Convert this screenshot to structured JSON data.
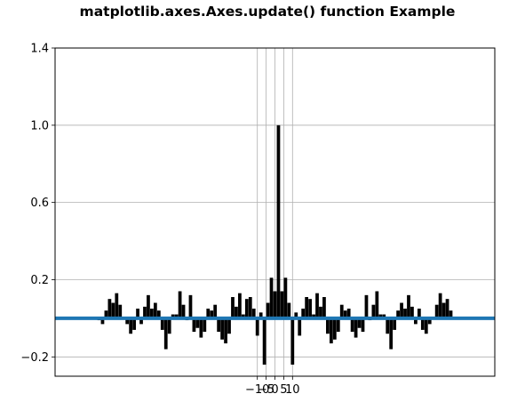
{
  "chart_data": {
    "type": "bar",
    "title": "matplotlib.axes.Axes.update() function Example",
    "xlabel": "",
    "ylabel": "",
    "xlim": [
      -125,
      125
    ],
    "ylim": [
      -0.3,
      1.4
    ],
    "yticks": [
      -0.2,
      0.2,
      0.6,
      1.0,
      1.4
    ],
    "ytick_labels": [
      "−0.2",
      "0.2",
      "0.6",
      "1.0",
      "1.4"
    ],
    "xticks": [
      -10,
      -5,
      0,
      5,
      10
    ],
    "xtick_labels": [
      "−10",
      "−5",
      "0",
      "5",
      "10"
    ],
    "grid": true,
    "bar_color": "#000000",
    "baseline": {
      "y": 0,
      "color": "#1f77b4"
    },
    "series": [
      {
        "x": [
          -100,
          -98,
          -96,
          -94,
          -92,
          -90,
          -88,
          -86,
          -84,
          -82,
          -80,
          -78,
          -76,
          -74,
          -72,
          -70,
          -68,
          -66,
          -64,
          -62,
          -60,
          -58,
          -56,
          -54,
          -52,
          -50,
          -48,
          -46,
          -44,
          -42,
          -40,
          -38,
          -36,
          -34,
          -32,
          -30,
          -28,
          -26,
          -24,
          -22,
          -20,
          -18,
          -16,
          -14,
          -12,
          -10,
          -8,
          -6,
          -4,
          -2,
          0,
          2,
          4,
          6,
          8,
          10,
          12,
          14,
          16,
          18,
          20,
          22,
          24,
          26,
          28,
          30,
          32,
          34,
          36,
          38,
          40,
          42,
          44,
          46,
          48,
          50,
          52,
          54,
          56,
          58,
          60,
          62,
          64,
          66,
          68,
          70,
          72,
          74,
          76,
          78,
          80,
          82,
          84,
          86,
          88,
          90,
          92,
          94,
          96,
          98,
          100
        ],
        "values": [
          -0.01,
          -0.03,
          0.04,
          0.1,
          0.08,
          0.13,
          0.07,
          0.0,
          -0.03,
          -0.08,
          -0.06,
          0.05,
          -0.03,
          0.06,
          0.12,
          0.05,
          0.08,
          0.04,
          -0.06,
          -0.16,
          -0.08,
          0.02,
          0.02,
          0.14,
          0.07,
          -0.01,
          0.12,
          -0.07,
          -0.05,
          -0.1,
          -0.07,
          0.05,
          0.04,
          0.07,
          -0.07,
          -0.11,
          -0.13,
          -0.08,
          0.11,
          0.06,
          0.13,
          0.02,
          0.1,
          0.11,
          0.05,
          -0.09,
          0.03,
          -0.24,
          0.08,
          0.21,
          0.14,
          1.0,
          0.14,
          0.21,
          0.08,
          -0.24,
          0.03,
          -0.09,
          0.05,
          0.11,
          0.1,
          0.02,
          0.13,
          0.06,
          0.11,
          -0.08,
          -0.13,
          -0.11,
          -0.07,
          0.07,
          0.04,
          0.05,
          -0.07,
          -0.1,
          -0.05,
          -0.07,
          0.12,
          -0.01,
          0.07,
          0.14,
          0.02,
          0.02,
          -0.08,
          -0.16,
          -0.06,
          0.04,
          0.08,
          0.05,
          0.12,
          0.06,
          -0.03,
          0.05,
          -0.06,
          -0.08,
          -0.03,
          0.0,
          0.07,
          0.13,
          0.08,
          0.1,
          0.04
        ]
      }
    ]
  }
}
